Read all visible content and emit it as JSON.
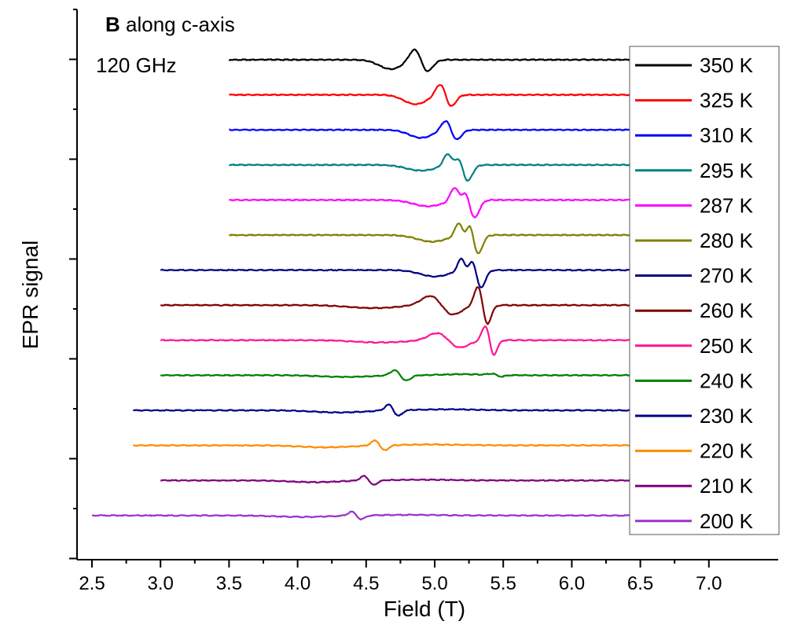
{
  "chart_data": {
    "type": "line",
    "title": "",
    "xlabel": "Field (T)",
    "ylabel": "EPR signal",
    "xlim": [
      2.45,
      7.0
    ],
    "x_ticks": [
      2.5,
      3.0,
      3.5,
      4.0,
      4.5,
      5.0,
      5.5,
      6.0,
      6.5,
      7.0
    ],
    "x_tick_labels": [
      "2.5",
      "3.0",
      "3.5",
      "4.0",
      "4.5",
      "5.0",
      "5.5",
      "6.0",
      "6.5",
      "7.0"
    ],
    "y_tick_labels": "none",
    "annotations": [
      {
        "bold": "B",
        "text": " along c-axis"
      },
      {
        "text": "120 GHz"
      }
    ],
    "grid": false,
    "legend_position": "right",
    "series": [
      {
        "name": "350 K",
        "color": "#000000",
        "x_start": 3.5,
        "center": 4.9,
        "width": 0.07,
        "shape": "single",
        "amp": 1.0
      },
      {
        "name": "325 K",
        "color": "#ff0000",
        "x_start": 3.5,
        "center": 5.08,
        "width": 0.06,
        "shape": "single",
        "amp": 1.0
      },
      {
        "name": "310 K",
        "color": "#0000ff",
        "x_start": 3.5,
        "center": 5.12,
        "width": 0.06,
        "shape": "single",
        "amp": 0.85
      },
      {
        "name": "295 K",
        "color": "#008080",
        "x_start": 3.5,
        "center": 5.2,
        "width": 0.06,
        "shape": "double",
        "amp": 0.85
      },
      {
        "name": "287 K",
        "color": "#ff00ff",
        "x_start": 3.5,
        "center": 5.25,
        "width": 0.06,
        "shape": "double",
        "amp": 0.95
      },
      {
        "name": "280 K",
        "color": "#808000",
        "x_start": 3.5,
        "center": 5.28,
        "width": 0.055,
        "shape": "double",
        "amp": 1.0
      },
      {
        "name": "270 K",
        "color": "#000080",
        "x_start": 3.0,
        "center": 5.3,
        "width": 0.055,
        "shape": "double",
        "amp": 0.95
      },
      {
        "name": "260 K",
        "color": "#800000",
        "x_start": 3.0,
        "center": 5.35,
        "width": 0.05,
        "shape": "broad-sharp",
        "amp": 0.9
      },
      {
        "name": "250 K",
        "color": "#ff1493",
        "x_start": 3.0,
        "center": 5.4,
        "width": 0.045,
        "shape": "broad-sharp",
        "amp": 0.7
      },
      {
        "name": "240 K",
        "color": "#008000",
        "x_start": 3.0,
        "center": 4.75,
        "width": 0.06,
        "shape": "broad-small",
        "amp": 0.5
      },
      {
        "name": "230 K",
        "color": "#00008b",
        "x_start": 2.8,
        "center": 4.7,
        "width": 0.05,
        "shape": "low",
        "amp": 0.45
      },
      {
        "name": "220 K",
        "color": "#ff8c00",
        "x_start": 2.8,
        "center": 4.6,
        "width": 0.05,
        "shape": "low",
        "amp": 0.4
      },
      {
        "name": "210 K",
        "color": "#800080",
        "x_start": 3.0,
        "center": 4.52,
        "width": 0.05,
        "shape": "low",
        "amp": 0.35
      },
      {
        "name": "200 K",
        "color": "#9932cc",
        "x_start": 2.5,
        "center": 4.43,
        "width": 0.05,
        "shape": "low",
        "amp": 0.3
      }
    ]
  }
}
